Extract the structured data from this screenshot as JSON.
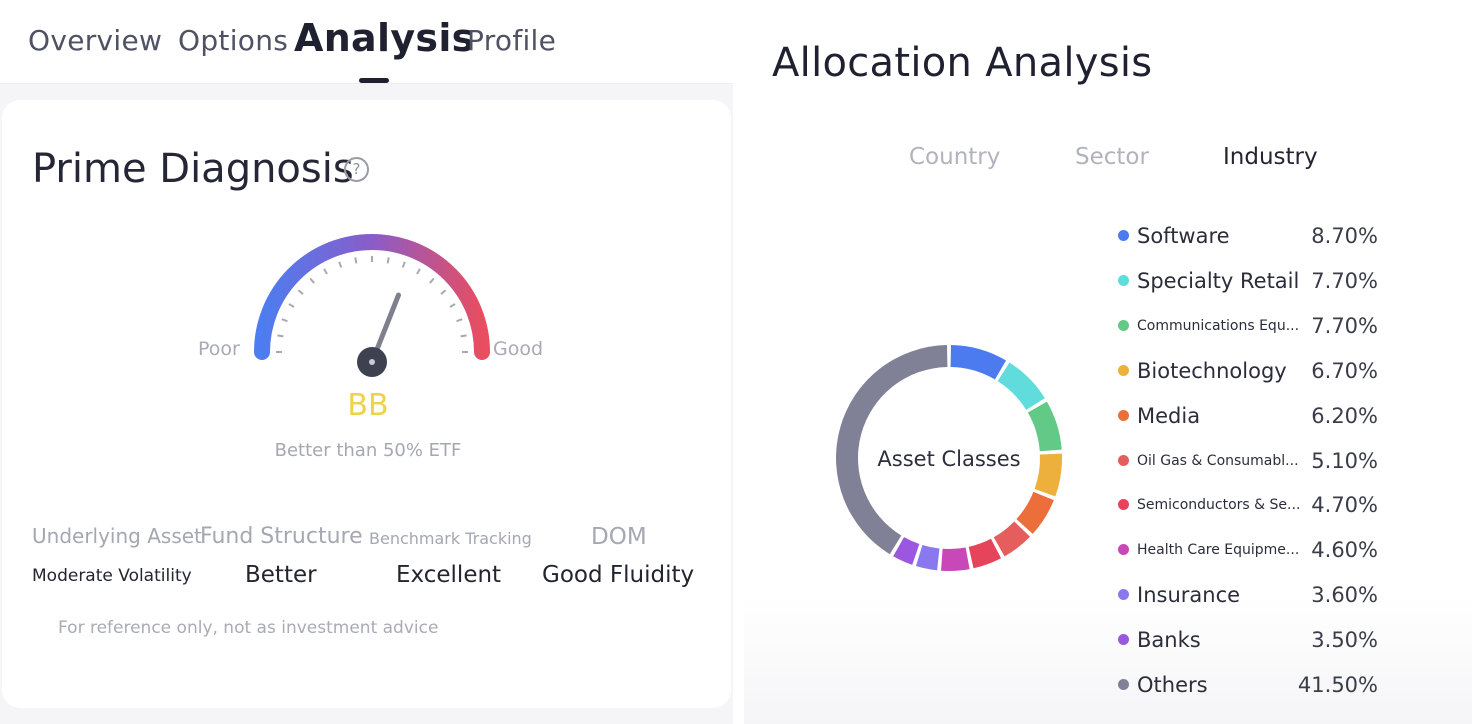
{
  "tabs": [
    {
      "label": "Overview"
    },
    {
      "label": "Options"
    },
    {
      "label": "Analysis"
    },
    {
      "label": "Profile"
    }
  ],
  "diagnosis": {
    "title": "Prime Diagnosis",
    "help_icon": "question-circle-icon",
    "gauge": {
      "low_label": "Poor",
      "high_label": "Good",
      "level": 0.62
    },
    "rating": "BB",
    "rating_sub": "Better than 50% ETF",
    "metrics": [
      {
        "label": "Underlying Asset",
        "value": "Moderate Volatility"
      },
      {
        "label": "Fund Structure",
        "value": "Better"
      },
      {
        "label": "Benchmark Tracking",
        "value": "Excellent"
      },
      {
        "label": "DOM",
        "value": "Good Fluidity"
      }
    ],
    "disclaimer": "For reference only, not as investment advice"
  },
  "allocation": {
    "title": "Allocation Analysis",
    "segments": [
      {
        "label": "Country",
        "active": false
      },
      {
        "label": "Sector",
        "active": false
      },
      {
        "label": "Industry",
        "active": true
      }
    ],
    "center_label": "Asset Classes"
  },
  "colors": {
    "rating": "#f0d24a",
    "gauge_start": "#4d7df0",
    "gauge_mid": "#8a5cc9",
    "gauge_end": "#e84d60"
  },
  "chart_data": {
    "type": "pie",
    "center_label": "Asset Classes",
    "slices": [
      {
        "name": "Software",
        "value": 8.7,
        "label": "8.70%",
        "color": "#4b7bef"
      },
      {
        "name": "Specialty Retail",
        "value": 7.7,
        "label": "7.70%",
        "color": "#60dcdc"
      },
      {
        "name": "Communications Equ...",
        "value": 7.7,
        "label": "7.70%",
        "color": "#62c987"
      },
      {
        "name": "Biotechnology",
        "value": 6.7,
        "label": "6.70%",
        "color": "#eeb03d"
      },
      {
        "name": "Media",
        "value": 6.2,
        "label": "6.20%",
        "color": "#ec6f3b"
      },
      {
        "name": "Oil Gas & Consumabl...",
        "value": 5.1,
        "label": "5.10%",
        "color": "#e55d5d"
      },
      {
        "name": "Semiconductors & Se...",
        "value": 4.7,
        "label": "4.70%",
        "color": "#e5445a"
      },
      {
        "name": "Health Care Equipme...",
        "value": 4.6,
        "label": "4.60%",
        "color": "#c948b8"
      },
      {
        "name": "Insurance",
        "value": 3.6,
        "label": "3.60%",
        "color": "#8a79ee"
      },
      {
        "name": "Banks",
        "value": 3.5,
        "label": "3.50%",
        "color": "#9b57e0"
      },
      {
        "name": "Others",
        "value": 41.5,
        "label": "41.50%",
        "color": "#808196"
      }
    ]
  }
}
